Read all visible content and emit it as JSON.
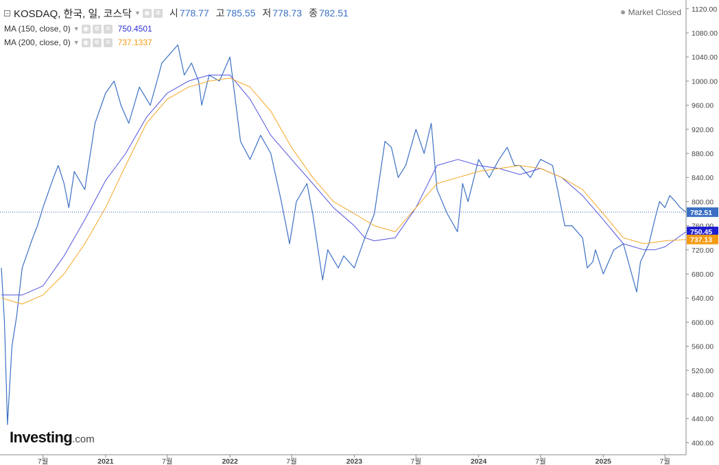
{
  "header": {
    "title": "KOSDAQ, 한국, 일, 코스닥",
    "ohlc": [
      {
        "label": "시",
        "value": "778.77"
      },
      {
        "label": "고",
        "value": "785.55"
      },
      {
        "label": "저",
        "value": "778.73"
      },
      {
        "label": "종",
        "value": "782.51"
      }
    ],
    "market_status": "Market Closed"
  },
  "indicators": [
    {
      "label": "MA (150, close, 0)",
      "value": "750.4501",
      "color": "#2f2fd6"
    },
    {
      "label": "MA (200, close, 0)",
      "value": "737.1337",
      "color": "#f59b12"
    }
  ],
  "branding": {
    "logo": "Investing",
    "logo_suffix": ".com"
  },
  "colors": {
    "price": "#3a6fc4",
    "ma150": "#5050e0",
    "ma200": "#f5a623",
    "axis": "#888888",
    "last_price_bg": "#3a6fc4"
  },
  "chart_data": {
    "type": "line",
    "x_range": [
      "2020-03",
      "2025-09"
    ],
    "x_tick_labels": [
      "7월",
      "2021",
      "7월",
      "2022",
      "7월",
      "2023",
      "7월",
      "2024",
      "7월",
      "2025",
      "7월"
    ],
    "x_ticks": [
      "2020-07-01",
      "2021-01-01",
      "2021-07-01",
      "2022-01-01",
      "2022-07-01",
      "2023-01-01",
      "2023-07-01",
      "2024-01-01",
      "2024-07-01",
      "2025-01-01",
      "2025-07-01"
    ],
    "ylim": [
      380,
      1130
    ],
    "y_ticks": [
      400,
      440,
      480,
      520,
      560,
      600,
      640,
      680,
      720,
      760,
      800,
      840,
      880,
      920,
      960,
      1000,
      1040,
      1080,
      1120
    ],
    "last_price": {
      "value": 782.51,
      "label": "782.51"
    },
    "series": [
      {
        "name": "KOSDAQ",
        "x": [
          "2020-03-01",
          "2020-03-10",
          "2020-03-19",
          "2020-04-01",
          "2020-04-15",
          "2020-05-01",
          "2020-06-01",
          "2020-06-15",
          "2020-07-01",
          "2020-08-01",
          "2020-08-15",
          "2020-09-01",
          "2020-09-15",
          "2020-10-01",
          "2020-11-01",
          "2020-12-01",
          "2021-01-01",
          "2021-01-26",
          "2021-02-15",
          "2021-03-10",
          "2021-04-10",
          "2021-05-12",
          "2021-06-01",
          "2021-06-15",
          "2021-07-01",
          "2021-08-01",
          "2021-08-20",
          "2021-09-10",
          "2021-10-01",
          "2021-10-10",
          "2021-11-01",
          "2021-12-01",
          "2022-01-01",
          "2022-02-01",
          "2022-03-01",
          "2022-04-01",
          "2022-05-01",
          "2022-06-01",
          "2022-06-25",
          "2022-07-15",
          "2022-08-15",
          "2022-09-01",
          "2022-09-30",
          "2022-10-15",
          "2022-11-15",
          "2022-12-01",
          "2023-01-01",
          "2023-02-01",
          "2023-03-01",
          "2023-04-01",
          "2023-04-20",
          "2023-05-10",
          "2023-06-01",
          "2023-07-01",
          "2023-07-25",
          "2023-08-15",
          "2023-09-01",
          "2023-10-01",
          "2023-10-31",
          "2023-11-15",
          "2023-12-01",
          "2024-01-01",
          "2024-02-01",
          "2024-03-01",
          "2024-03-25",
          "2024-04-15",
          "2024-05-01",
          "2024-06-01",
          "2024-07-01",
          "2024-08-05",
          "2024-08-20",
          "2024-09-10",
          "2024-10-01",
          "2024-11-01",
          "2024-11-15",
          "2024-12-01",
          "2024-12-09",
          "2025-01-01",
          "2025-02-01",
          "2025-03-01",
          "2025-04-09",
          "2025-04-20",
          "2025-05-15",
          "2025-06-01",
          "2025-06-15",
          "2025-07-01",
          "2025-07-15",
          "2025-08-01",
          "2025-08-15",
          "2025-09-01"
        ],
        "values": [
          690,
          600,
          430,
          560,
          610,
          690,
          740,
          760,
          790,
          840,
          860,
          830,
          790,
          850,
          820,
          930,
          980,
          1000,
          960,
          930,
          990,
          960,
          1000,
          1030,
          1040,
          1060,
          1010,
          1030,
          1000,
          960,
          1010,
          1000,
          1040,
          900,
          870,
          910,
          880,
          800,
          730,
          800,
          830,
          780,
          670,
          720,
          690,
          710,
          690,
          740,
          780,
          900,
          890,
          840,
          860,
          920,
          880,
          930,
          820,
          780,
          750,
          830,
          800,
          870,
          840,
          870,
          890,
          860,
          860,
          840,
          870,
          860,
          820,
          760,
          760,
          740,
          690,
          700,
          720,
          680,
          720,
          730,
          650,
          700,
          730,
          770,
          800,
          790,
          810,
          800,
          790,
          782.51
        ]
      },
      {
        "name": "MA (150, close, 0)",
        "x": [
          "2020-03-01",
          "2020-05-01",
          "2020-07-01",
          "2020-09-01",
          "2020-11-01",
          "2021-01-01",
          "2021-03-01",
          "2021-05-01",
          "2021-07-01",
          "2021-09-01",
          "2021-11-01",
          "2022-01-01",
          "2022-03-01",
          "2022-05-01",
          "2022-07-01",
          "2022-09-01",
          "2022-11-01",
          "2023-01-01",
          "2023-02-01",
          "2023-03-01",
          "2023-05-01",
          "2023-07-01",
          "2023-09-01",
          "2023-11-01",
          "2024-01-01",
          "2024-03-01",
          "2024-05-01",
          "2024-07-01",
          "2024-09-01",
          "2024-11-01",
          "2025-01-01",
          "2025-03-01",
          "2025-05-01",
          "2025-06-01",
          "2025-07-01",
          "2025-09-01"
        ],
        "values": [
          645,
          645,
          660,
          710,
          770,
          835,
          880,
          940,
          980,
          1000,
          1010,
          1010,
          970,
          910,
          870,
          830,
          790,
          760,
          740,
          735,
          740,
          790,
          860,
          870,
          860,
          855,
          845,
          855,
          840,
          810,
          770,
          730,
          720,
          720,
          725,
          750
        ]
      },
      {
        "name": "MA (200, close, 0)",
        "x": [
          "2020-03-01",
          "2020-05-01",
          "2020-07-01",
          "2020-09-01",
          "2020-11-01",
          "2021-01-01",
          "2021-03-01",
          "2021-05-01",
          "2021-07-01",
          "2021-09-01",
          "2021-11-01",
          "2022-01-01",
          "2022-03-01",
          "2022-05-01",
          "2022-07-01",
          "2022-09-01",
          "2022-11-01",
          "2023-01-01",
          "2023-03-01",
          "2023-05-01",
          "2023-07-01",
          "2023-09-01",
          "2023-11-01",
          "2024-01-01",
          "2024-03-01",
          "2024-05-01",
          "2024-07-01",
          "2024-09-01",
          "2024-11-01",
          "2025-01-01",
          "2025-03-01",
          "2025-05-01",
          "2025-07-01",
          "2025-09-01"
        ],
        "values": [
          640,
          630,
          645,
          680,
          730,
          790,
          860,
          930,
          970,
          990,
          1000,
          1005,
          990,
          950,
          890,
          840,
          800,
          780,
          760,
          750,
          790,
          830,
          840,
          850,
          855,
          860,
          855,
          840,
          820,
          780,
          740,
          730,
          735,
          737
        ]
      }
    ]
  }
}
